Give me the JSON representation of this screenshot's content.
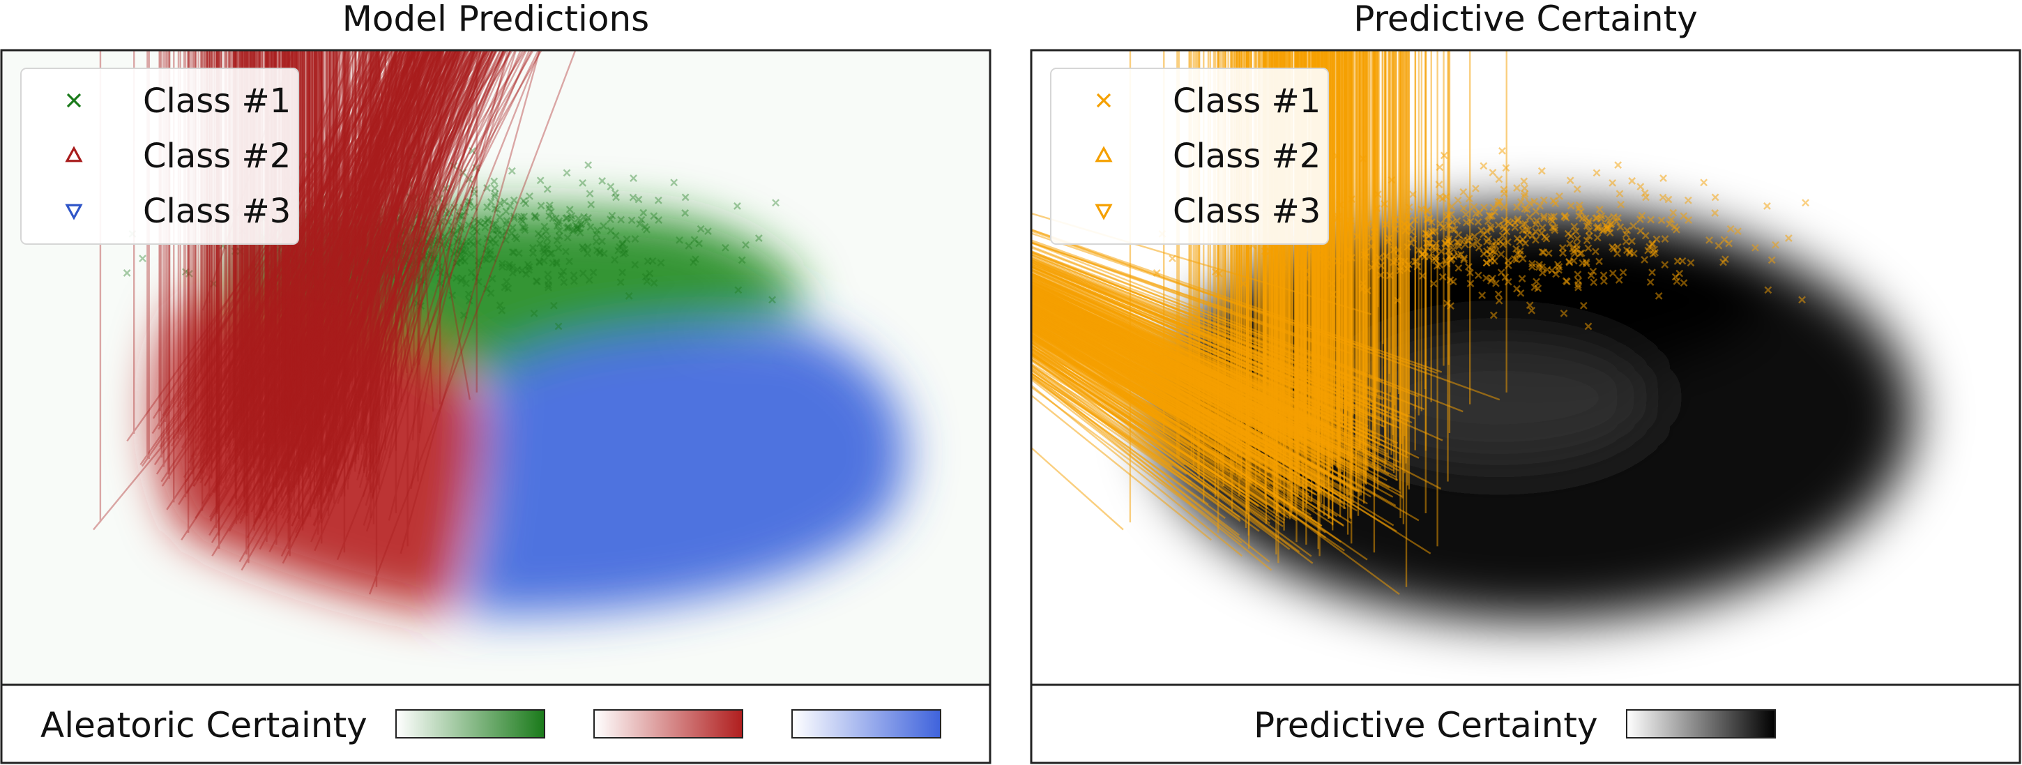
{
  "chart_data": [
    {
      "type": "scatter",
      "title": "Model Predictions",
      "xlabel": "",
      "ylabel": "",
      "background": "class probability heatmap",
      "legend": {
        "placement": "top-left",
        "entries": [
          {
            "label": "Class #1",
            "marker": "x",
            "color": "#1a7a1a"
          },
          {
            "label": "Class #2",
            "marker": "triangle-up",
            "color": "#a81c1c"
          },
          {
            "label": "Class #3",
            "marker": "triangle-down",
            "color": "#2f55c8"
          }
        ]
      },
      "colorbar": {
        "label": "Aleatoric Certainty",
        "gradients": [
          {
            "from": "#ffffff",
            "to": "#1a7a1a"
          },
          {
            "from": "#ffffff",
            "to": "#b01e1e"
          },
          {
            "from": "#ffffff",
            "to": "#3f63dc"
          }
        ]
      },
      "series": [
        {
          "name": "Class #1",
          "center": [
            0.0,
            0.85
          ],
          "spread": [
            1.45,
            0.4
          ],
          "count": 520
        },
        {
          "name": "Class #2",
          "center": [
            -1.25,
            -0.5
          ],
          "spread": [
            0.7,
            0.55
          ],
          "count": 480
        },
        {
          "name": "Class #3",
          "center": [
            1.15,
            -0.3
          ],
          "spread": [
            0.75,
            0.55
          ],
          "count": 480
        }
      ]
    },
    {
      "type": "scatter",
      "title": "Predictive Certainty",
      "xlabel": "",
      "ylabel": "",
      "background": "predictive certainty heatmap",
      "legend": {
        "placement": "top-left",
        "entries": [
          {
            "label": "Class #1",
            "marker": "x",
            "color": "#f5a000"
          },
          {
            "label": "Class #2",
            "marker": "triangle-up",
            "color": "#f5a000"
          },
          {
            "label": "Class #3",
            "marker": "triangle-down",
            "color": "#f5a000"
          }
        ]
      },
      "colorbar": {
        "label": "Predictive Certainty",
        "gradients": [
          {
            "from": "#ffffff",
            "to": "#000000"
          }
        ]
      },
      "series": [
        {
          "name": "Class #1",
          "center": [
            0.0,
            0.85
          ],
          "spread": [
            1.45,
            0.4
          ],
          "count": 520
        },
        {
          "name": "Class #2",
          "center": [
            -1.25,
            -0.5
          ],
          "spread": [
            0.7,
            0.55
          ],
          "count": 480
        },
        {
          "name": "Class #3",
          "center": [
            1.15,
            -0.3
          ],
          "spread": [
            0.75,
            0.55
          ],
          "count": 480
        }
      ]
    }
  ]
}
